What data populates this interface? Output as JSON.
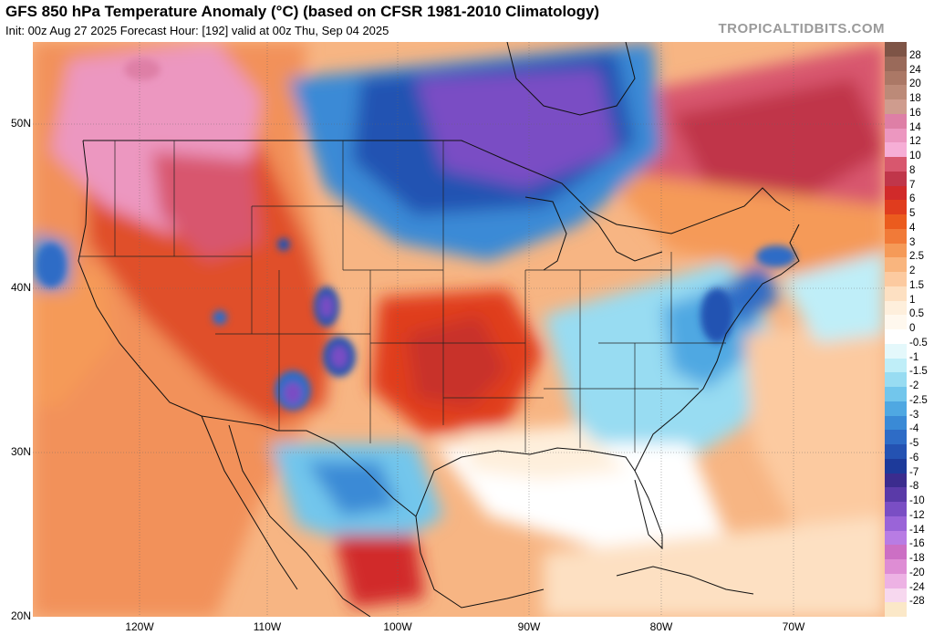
{
  "header": {
    "title": "GFS 850 hPa Temperature Anomaly (°C) (based on CFSR 1981-2010 Climatology)",
    "subtitle": "Init: 00z Aug 27 2025   Forecast Hour: [192]   valid at 00z Thu, Sep 04 2025",
    "source": "TROPICALTIDBITS.COM"
  },
  "map": {
    "lat_labels": [
      "50N",
      "40N",
      "30N",
      "20N"
    ],
    "lon_labels": [
      "120W",
      "110W",
      "100W",
      "90W",
      "80W",
      "70W"
    ]
  },
  "legend": {
    "items": [
      {
        "label": "28",
        "color": "#9a6a5a"
      },
      {
        "label": "24",
        "color": "#ab7866"
      },
      {
        "label": "20",
        "color": "#bc8a78"
      },
      {
        "label": "18",
        "color": "#cf9c8e"
      },
      {
        "label": "16",
        "color": "#de7fa6"
      },
      {
        "label": "14",
        "color": "#ec97c0"
      },
      {
        "label": "12",
        "color": "#f6aed6"
      },
      {
        "label": "10",
        "color": "#d8576e"
      },
      {
        "label": "8",
        "color": "#c0364a"
      },
      {
        "label": "7",
        "color": "#d12a2a"
      },
      {
        "label": "6",
        "color": "#e03c1e"
      },
      {
        "label": "5",
        "color": "#eb5b1e"
      },
      {
        "label": "4",
        "color": "#f17a38"
      },
      {
        "label": "3",
        "color": "#f59a58"
      },
      {
        "label": "2.5",
        "color": "#f9b57e"
      },
      {
        "label": "2",
        "color": "#fccaa0"
      },
      {
        "label": "1.5",
        "color": "#fde0c2"
      },
      {
        "label": "1",
        "color": "#feefdc"
      },
      {
        "label": "0.5",
        "color": "#fff8ee"
      },
      {
        "label": "0",
        "color": "#ffffff"
      },
      {
        "label": "-0.5",
        "color": "#e4f8fb"
      },
      {
        "label": "-1",
        "color": "#bfeef8"
      },
      {
        "label": "-1.5",
        "color": "#98dcf2"
      },
      {
        "label": "-2",
        "color": "#72c6ec"
      },
      {
        "label": "-2.5",
        "color": "#4fa8e2"
      },
      {
        "label": "-3",
        "color": "#3a8ad6"
      },
      {
        "label": "-4",
        "color": "#2e6cc6"
      },
      {
        "label": "-5",
        "color": "#2452b2"
      },
      {
        "label": "-6",
        "color": "#1d3a9a"
      },
      {
        "label": "-7",
        "color": "#3b2c8e"
      },
      {
        "label": "-8",
        "color": "#5a3aa8"
      },
      {
        "label": "-10",
        "color": "#7a4ec4"
      },
      {
        "label": "-12",
        "color": "#9a64d8"
      },
      {
        "label": "-14",
        "color": "#b87ce4"
      },
      {
        "label": "-16",
        "color": "#cc6fc4"
      },
      {
        "label": "-18",
        "color": "#de8dd4"
      },
      {
        "label": "-20",
        "color": "#edb2e4"
      },
      {
        "label": "-24",
        "color": "#f7d8ef"
      },
      {
        "label": "-28",
        "color": "#fbe8c8"
      }
    ]
  }
}
